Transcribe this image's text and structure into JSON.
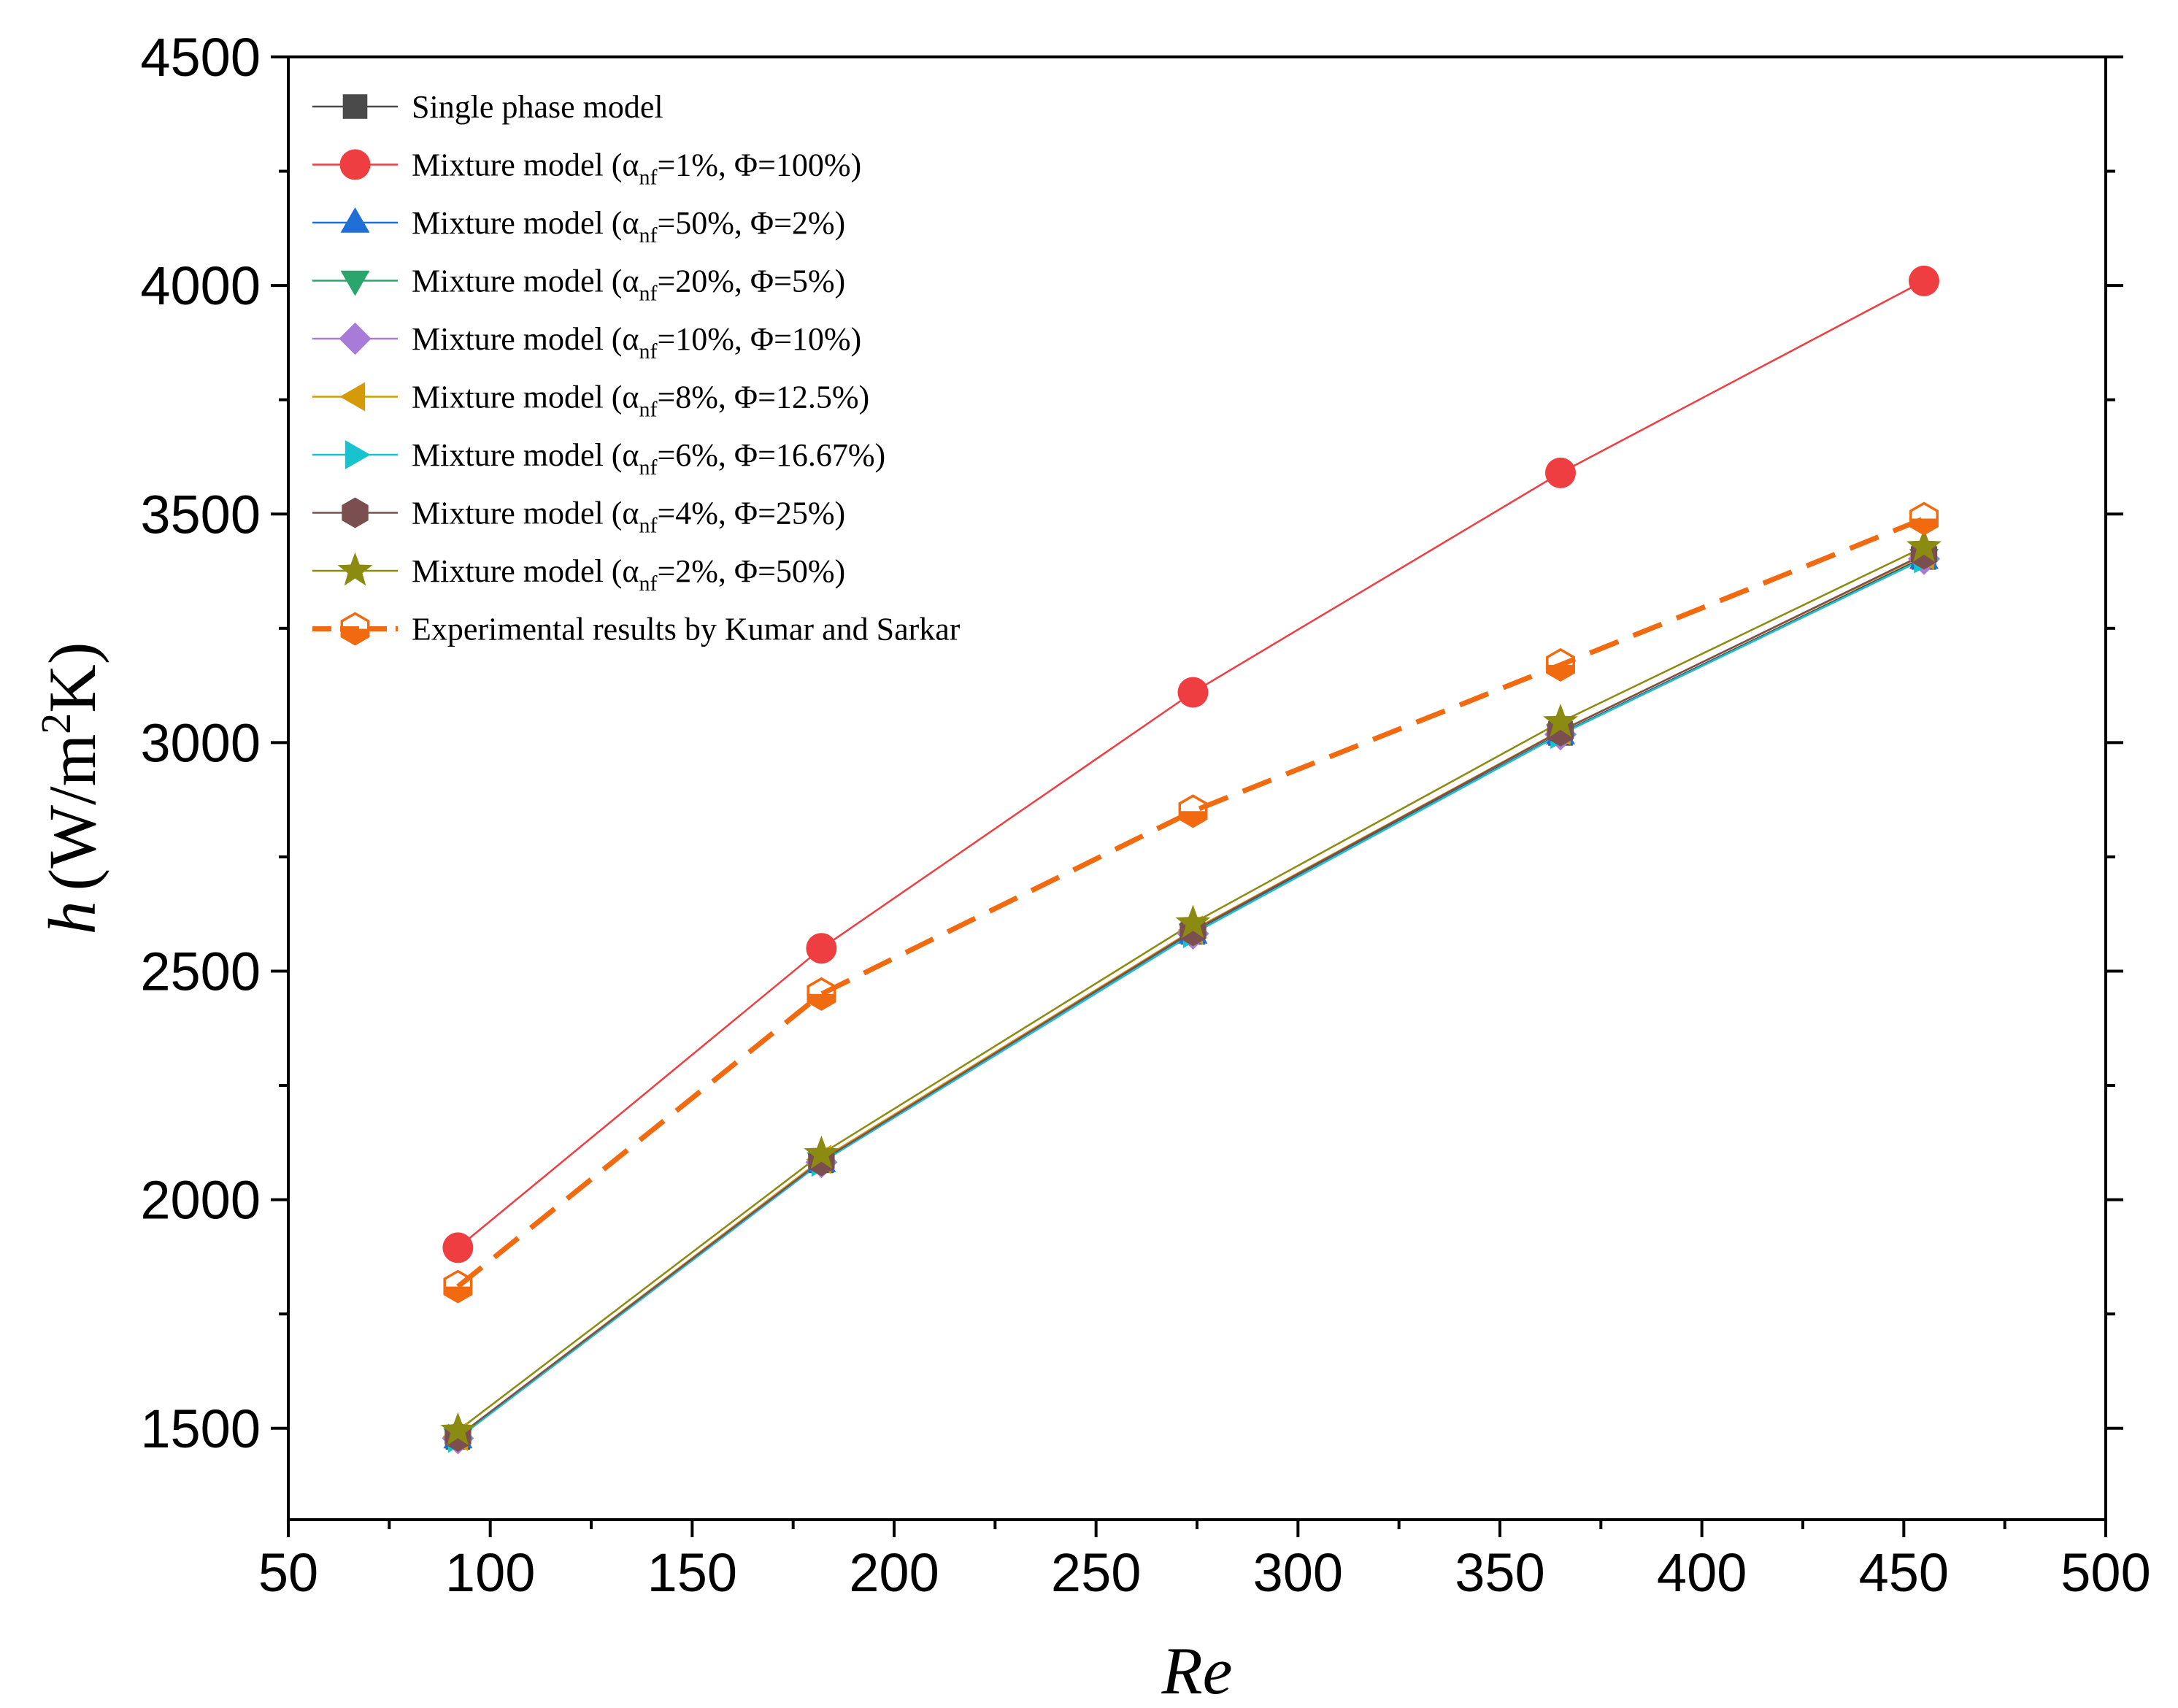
{
  "chart_data": {
    "type": "line",
    "title": "",
    "xlabel": "Re",
    "ylabel": {
      "prefix": "h",
      "units_a": "(W/m",
      "units_sup": "2",
      "units_b": "K)"
    },
    "xlim": [
      50,
      500
    ],
    "ylim": [
      1300,
      4500
    ],
    "xticks": [
      50,
      100,
      150,
      200,
      250,
      300,
      350,
      400,
      450,
      500
    ],
    "yticks": [
      1500,
      2000,
      2500,
      3000,
      3500,
      4000,
      4500
    ],
    "legend_position": "top-left",
    "x": [
      92,
      182,
      274,
      365,
      455
    ],
    "series": [
      {
        "name": "Single phase model",
        "label": {
          "main": "Single phase model"
        },
        "marker": "square",
        "color": "#4a4a4a",
        "line": "solid",
        "values": [
          1480,
          2085,
          2585,
          3020,
          3405
        ]
      },
      {
        "name": "Mixture model (αnf=1%, Φ=100%)",
        "label": {
          "main": "Mixture model (α",
          "sub": "nf",
          "rest": "=1%, Φ=100%)"
        },
        "marker": "circle",
        "color": "#ef3e42",
        "line": "solid",
        "values": [
          1895,
          2550,
          3110,
          3590,
          4010
        ]
      },
      {
        "name": "Mixture model (αnf=50%, Φ=2%)",
        "label": {
          "main": "Mixture model (α",
          "sub": "nf",
          "rest": "=50%, Φ=2%)"
        },
        "marker": "triangle-up",
        "color": "#1f6fd6",
        "line": "solid",
        "values": [
          1478,
          2082,
          2582,
          3018,
          3402
        ]
      },
      {
        "name": "Mixture model (αnf=20%, Φ=5%)",
        "label": {
          "main": "Mixture model (α",
          "sub": "nf",
          "rest": "=20%, Φ=5%)"
        },
        "marker": "triangle-down",
        "color": "#2aa56c",
        "line": "solid",
        "values": [
          1478,
          2082,
          2582,
          3018,
          3402
        ]
      },
      {
        "name": "Mixture model (αnf=10%, Φ=10%)",
        "label": {
          "main": "Mixture model (α",
          "sub": "nf",
          "rest": "=10%, Φ=10%)"
        },
        "marker": "diamond",
        "color": "#a97bd9",
        "line": "solid",
        "values": [
          1478,
          2082,
          2582,
          3018,
          3402
        ]
      },
      {
        "name": "Mixture model (αnf=8%, Φ=12.5%)",
        "label": {
          "main": "Mixture model (α",
          "sub": "nf",
          "rest": "=8%, Φ=12.5%)"
        },
        "marker": "triangle-left",
        "color": "#d49a08",
        "line": "solid",
        "values": [
          1482,
          2088,
          2590,
          3026,
          3410
        ]
      },
      {
        "name": "Mixture model (αnf=6%, Φ=16.67%)",
        "label": {
          "main": "Mixture model (α",
          "sub": "nf",
          "rest": "=6%, Φ=16.67%)"
        },
        "marker": "triangle-right",
        "color": "#17c3cf",
        "line": "solid",
        "values": [
          1478,
          2082,
          2582,
          3018,
          3402
        ]
      },
      {
        "name": "Mixture model (αnf=4%, Φ=25%)",
        "label": {
          "main": "Mixture model (α",
          "sub": "nf",
          "rest": "=4%, Φ=25%)"
        },
        "marker": "hexagon",
        "color": "#7b4f4f",
        "line": "solid",
        "values": [
          1482,
          2085,
          2588,
          3025,
          3412
        ]
      },
      {
        "name": "Mixture model (αnf=2%, Φ=50%)",
        "label": {
          "main": "Mixture model (α",
          "sub": "nf",
          "rest": "=2%, Φ=50%)"
        },
        "marker": "star",
        "color": "#8b8b12",
        "line": "solid",
        "values": [
          1495,
          2100,
          2605,
          3045,
          3428
        ]
      },
      {
        "name": "Experimental results by Kumar and Sarkar",
        "label": {
          "main": "Experimental results by Kumar and Sarkar"
        },
        "marker": "half-hexagon",
        "color": "#f26a10",
        "line": "dashed",
        "values": [
          1810,
          2450,
          2850,
          3170,
          3490
        ]
      }
    ]
  }
}
